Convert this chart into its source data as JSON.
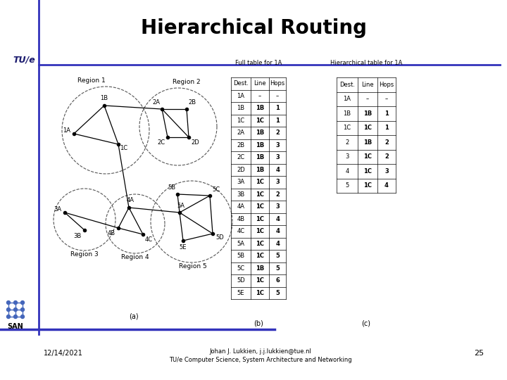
{
  "title": "Hierarchical Routing",
  "title_fontsize": 20,
  "title_fontweight": "bold",
  "bg_color": "#ffffff",
  "header_line_color": "#3333bb",
  "tue_color": "#1a1a6e",
  "footer_date": "12/14/2021",
  "footer_center": "Johan J. Lukkien, j.j.lukkien@tue.nl\nTU/e Computer Science, System Architecture and Networking",
  "footer_page": "25",
  "full_table_title": "Full table for 1A",
  "hier_table_title": "Hierarchical table for 1A",
  "full_table_headers": [
    "Dest.",
    "Line",
    "Hops"
  ],
  "full_table_data": [
    [
      "1A",
      "–",
      "–"
    ],
    [
      "1B",
      "1B",
      "1"
    ],
    [
      "1C",
      "1C",
      "1"
    ],
    [
      "2A",
      "1B",
      "2"
    ],
    [
      "2B",
      "1B",
      "3"
    ],
    [
      "2C",
      "1B",
      "3"
    ],
    [
      "2D",
      "1B",
      "4"
    ],
    [
      "3A",
      "1C",
      "3"
    ],
    [
      "3B",
      "1C",
      "2"
    ],
    [
      "4A",
      "1C",
      "3"
    ],
    [
      "4B",
      "1C",
      "4"
    ],
    [
      "4C",
      "1C",
      "4"
    ],
    [
      "5A",
      "1C",
      "4"
    ],
    [
      "5B",
      "1C",
      "5"
    ],
    [
      "5C",
      "1B",
      "5"
    ],
    [
      "5D",
      "1C",
      "6"
    ],
    [
      "5E",
      "1C",
      "5"
    ]
  ],
  "hier_table_headers": [
    "Dest.",
    "Line",
    "Hops"
  ],
  "hier_table_data": [
    [
      "1A",
      "–",
      "–"
    ],
    [
      "1B",
      "1B",
      "1"
    ],
    [
      "1C",
      "1C",
      "1"
    ],
    [
      "2",
      "1B",
      "2"
    ],
    [
      "3",
      "1C",
      "2"
    ],
    [
      "4",
      "1C",
      "3"
    ],
    [
      "5",
      "1C",
      "4"
    ]
  ]
}
